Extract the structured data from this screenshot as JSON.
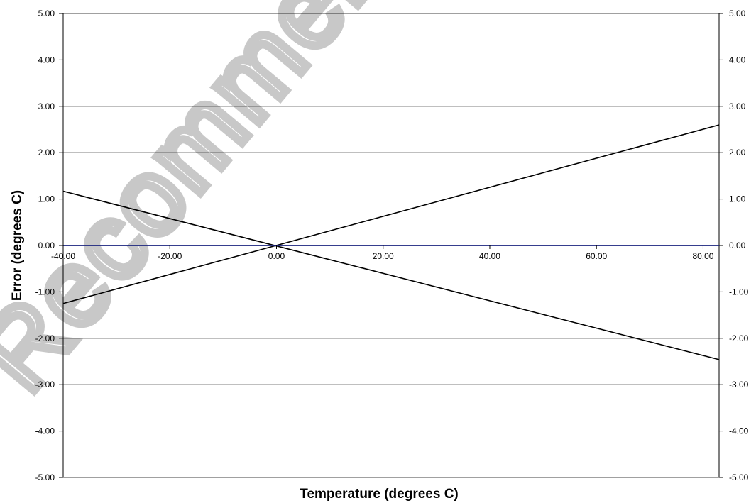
{
  "chart_data": {
    "type": "line",
    "title": "",
    "xlabel": "Temperature (degrees C)",
    "ylabel": "Error (degrees C)",
    "xlim": [
      -40,
      83
    ],
    "ylim": [
      -5,
      5
    ],
    "x_ticks": [
      -40,
      -20,
      0,
      20,
      40,
      60,
      80
    ],
    "x_tick_labels": [
      "-40.00",
      "-20.00",
      "0.00",
      "20.00",
      "40.00",
      "60.00",
      "80.00"
    ],
    "y_ticks": [
      5,
      4,
      3,
      2,
      1,
      0,
      -1,
      -2,
      -3,
      -4,
      -5
    ],
    "y_tick_labels": [
      "5.00",
      "4.00",
      "3.00",
      "2.00",
      "1.00",
      "0.00",
      "-1.00",
      "-2.00",
      "-3.00",
      "-4.00",
      "-5.00"
    ],
    "right_y_tick_labels": [
      "5.00",
      "4.00",
      "3.00",
      "2.00",
      "1.00",
      "0.00",
      "-1.00",
      "-2.00",
      "-3.00",
      "-4.00",
      "-5.00"
    ],
    "grid": true,
    "series": [
      {
        "x": [
          -40,
          83
        ],
        "y": [
          -1.25,
          2.6
        ],
        "color": "#000000"
      },
      {
        "x": [
          -40,
          83
        ],
        "y": [
          1.17,
          -2.46
        ],
        "color": "#000000"
      },
      {
        "x": [
          -40,
          83
        ],
        "y": [
          0,
          0
        ],
        "color": "#1a237e"
      }
    ]
  },
  "watermark": {
    "text": "Recommended",
    "color": "#c8c8c8"
  }
}
